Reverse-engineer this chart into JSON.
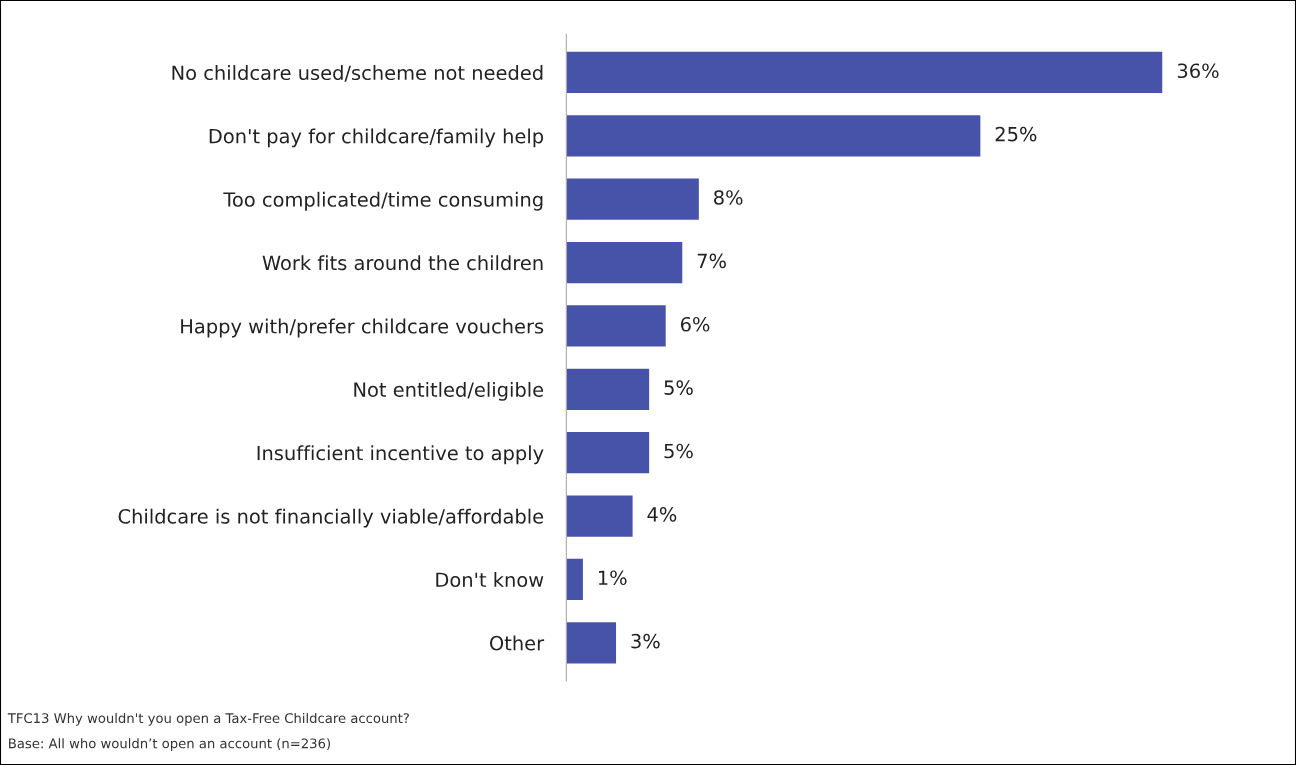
{
  "chart_data": {
    "type": "bar",
    "orientation": "horizontal",
    "categories": [
      "No childcare used/scheme not needed",
      "Don't pay for childcare/family help",
      "Too complicated/time consuming",
      "Work fits around the children",
      "Happy with/prefer childcare vouchers",
      "Not entitled/eligible",
      "Insufficient incentive to apply",
      "Childcare is not financially viable/affordable",
      "Don't know",
      "Other"
    ],
    "values": [
      36,
      25,
      8,
      7,
      6,
      5,
      5,
      4,
      1,
      3
    ],
    "value_labels": [
      "36%",
      "25%",
      "8%",
      "7%",
      "6%",
      "5%",
      "5%",
      "4%",
      "1%",
      "3%"
    ],
    "color": "#4753a8",
    "annotations": [
      "TFC13 Why wouldn't you open a Tax-Free Childcare account?",
      "Base: All who wouldn’t open an account (n=236)"
    ]
  }
}
